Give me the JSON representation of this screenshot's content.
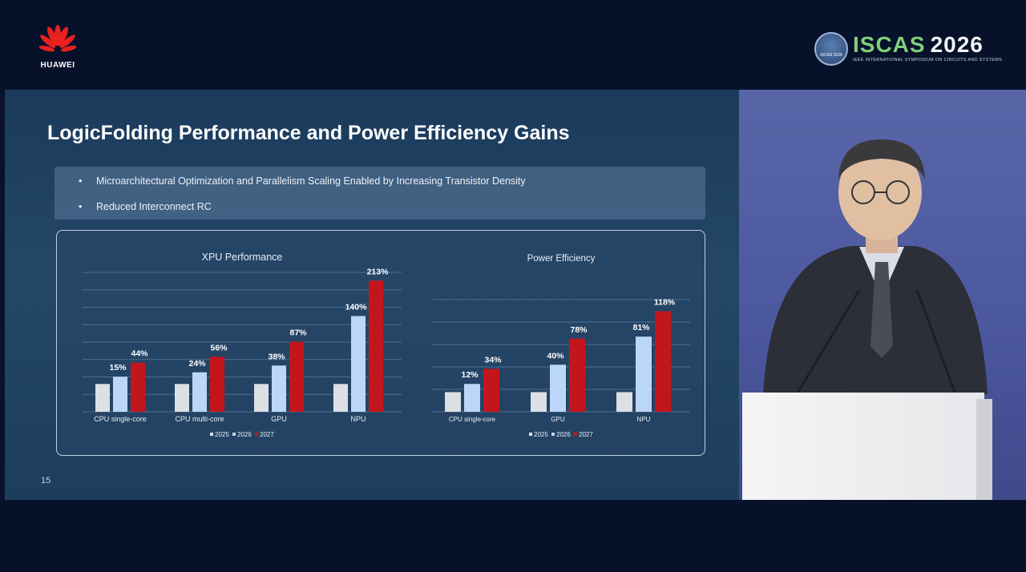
{
  "brand": {
    "left_logo_text": "HUAWEI",
    "event_name": "ISCAS",
    "event_year": "2026",
    "event_subtitle": "IEEE INTERNATIONAL SYMPOSIUM ON CIRCUITS AND SYSTEMS",
    "emblem_text": "ISCAS 2026"
  },
  "slide": {
    "title": "LogicFolding Performance and Power Efficiency Gains",
    "bullets": [
      "Microarchitectural Optimization and Parallelism Scaling Enabled by Increasing Transistor Density",
      "Reduced Interconnect RC"
    ],
    "bullet_glyph": "•",
    "page_number": "15"
  },
  "colors": {
    "series_2025": "#dcdfe4",
    "series_2026": "#bcd6f7",
    "series_2027": "#c3161c",
    "grid": "#4f6e90",
    "text": "#e8eef5"
  },
  "chart_data": [
    {
      "type": "bar",
      "title": "XPU Performance",
      "categories": [
        "CPU single-core",
        "CPU multi-core",
        "GPU",
        "NPU"
      ],
      "series": [
        {
          "name": "2025",
          "values": [
            0,
            0,
            0,
            0
          ],
          "labels": [
            "",
            "",
            "",
            ""
          ]
        },
        {
          "name": "2026",
          "values": [
            15,
            24,
            38,
            140
          ],
          "labels": [
            "15%",
            "24%",
            "38%",
            "140%"
          ]
        },
        {
          "name": "2027",
          "values": [
            44,
            56,
            87,
            213
          ],
          "labels": [
            "44%",
            "56%",
            "87%",
            "213%"
          ]
        }
      ],
      "legend_position": "bottom-center",
      "grid": true
    },
    {
      "type": "bar",
      "title": "Power Efficiency",
      "categories": [
        "CPU single-core",
        "GPU",
        "NPU"
      ],
      "series": [
        {
          "name": "2025",
          "values": [
            0,
            0,
            0
          ],
          "labels": [
            "",
            "",
            ""
          ]
        },
        {
          "name": "2026",
          "values": [
            12,
            40,
            81
          ],
          "labels": [
            "12%",
            "40%",
            "81%"
          ]
        },
        {
          "name": "2027",
          "values": [
            34,
            78,
            118
          ],
          "labels": [
            "34%",
            "78%",
            "118%"
          ]
        }
      ],
      "legend_position": "bottom-center",
      "grid": true
    }
  ]
}
